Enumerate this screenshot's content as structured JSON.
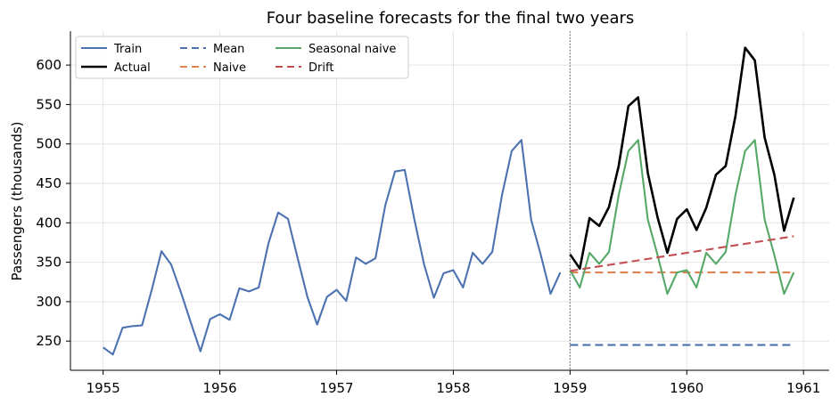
{
  "chart_data": {
    "type": "line",
    "title": "Four baseline forecasts for the final two years",
    "xlabel": "",
    "ylabel": "Passengers (thousands)",
    "xlim": [
      1954.72,
      1961.22
    ],
    "ylim": [
      213,
      643
    ],
    "x_ticks": [
      1955,
      1956,
      1957,
      1958,
      1959,
      1960,
      1961
    ],
    "y_ticks": [
      250,
      300,
      350,
      400,
      450,
      500,
      550,
      600
    ],
    "grid": true,
    "legend_position": "top-left",
    "split_marker_x": 1959,
    "series": [
      {
        "name": "Train",
        "color": "#4c72b0",
        "style": "solid",
        "x_start": 1955,
        "x_step": 0.08333333,
        "values": [
          242,
          233,
          267,
          269,
          270,
          315,
          364,
          347,
          312,
          274,
          237,
          278,
          284,
          277,
          317,
          313,
          318,
          374,
          413,
          405,
          355,
          306,
          271,
          306,
          315,
          301,
          356,
          348,
          355,
          422,
          465,
          467,
          404,
          347,
          305,
          336,
          340,
          318,
          362,
          348,
          363,
          435,
          491,
          505,
          404,
          359,
          310,
          337
        ]
      },
      {
        "name": "Actual",
        "color": "#000000",
        "style": "solid",
        "x_start": 1959,
        "x_step": 0.08333333,
        "values": [
          360,
          342,
          406,
          396,
          420,
          472,
          548,
          559,
          463,
          407,
          362,
          405,
          417,
          391,
          419,
          461,
          472,
          535,
          622,
          606,
          508,
          461,
          390,
          432
        ]
      },
      {
        "name": "Mean",
        "color": "#4c72b0",
        "style": "dashed",
        "x_start": 1959,
        "x_step": 0.08333333,
        "values": [
          245,
          245
        ]
      },
      {
        "name": "Naive",
        "color": "#dd8452",
        "style": "dashed",
        "x_start": 1959,
        "x_step": 0.08333333,
        "values": [
          337,
          337
        ]
      },
      {
        "name": "Seasonal naive",
        "color": "#55a868",
        "style": "solid",
        "x_start": 1959,
        "x_step": 0.08333333,
        "values": [
          340,
          318,
          362,
          348,
          363,
          435,
          491,
          505,
          404,
          359,
          310,
          337,
          340,
          318,
          362,
          348,
          363,
          435,
          491,
          505,
          404,
          359,
          310,
          337
        ]
      },
      {
        "name": "Drift",
        "color": "#c44e52",
        "style": "dashed",
        "x_start": 1959,
        "x_step": 0.08333333,
        "values": [
          339,
          383
        ]
      }
    ]
  }
}
